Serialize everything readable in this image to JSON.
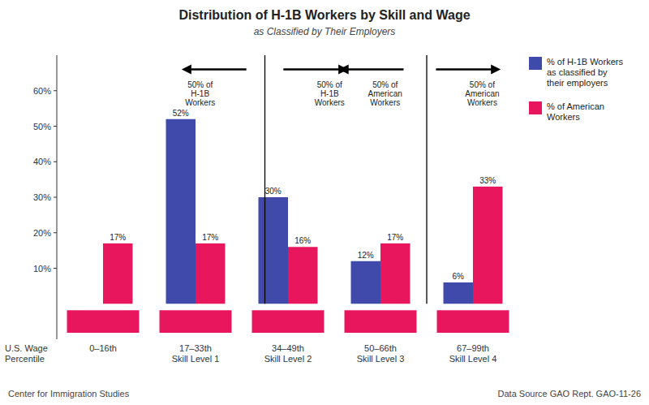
{
  "chart_data": {
    "type": "bar",
    "title": "Distribution of H-1B Workers by Skill and Wage",
    "subtitle": "as Classified by Their Employers",
    "xlabel": "U.S. Wage\nPercentile",
    "categories": [
      "0–16th",
      "17–33th\nSkill Level 1",
      "34–49th\nSkill Level 2",
      "50–66th\nSkill Level 3",
      "67–99th\nSkill Level 4"
    ],
    "series": [
      {
        "name": "% of H-1B Workers\nas classified by\ntheir employers",
        "color": "#3f4aab",
        "values": [
          0,
          52,
          30,
          12,
          6
        ],
        "value_labels": [
          null,
          "52%",
          "30%",
          "12%",
          "6%"
        ]
      },
      {
        "name": "% of American\nWorkers",
        "color": "#e8175d",
        "values": [
          17,
          17,
          16,
          17,
          33
        ],
        "value_labels": [
          "17%",
          "17%",
          "16%",
          "17%",
          "33%"
        ]
      }
    ],
    "ylim": [
      -10,
      70
    ],
    "yticks": [
      {
        "value": 10,
        "label": "10%"
      },
      {
        "value": 20,
        "label": "20%"
      },
      {
        "value": 30,
        "label": "30%"
      },
      {
        "value": 40,
        "label": "40%"
      },
      {
        "value": 50,
        "label": "50%"
      },
      {
        "value": 60,
        "label": "60%"
      }
    ],
    "grid": false,
    "legend": "upper right",
    "data_labels": true,
    "dividers": [
      1.75,
      3.5
    ],
    "arrows": [
      {
        "x": 1.55,
        "x_end": 0.85,
        "y": 66
      },
      {
        "x": 1.95,
        "x_end": 2.65,
        "y": 66
      },
      {
        "x": 3.25,
        "x_end": 2.55,
        "y": 66
      },
      {
        "x": 3.6,
        "x_end": 4.3,
        "y": 66
      }
    ],
    "annotations": [
      {
        "text": "50% of\nH-1B\nWorkers",
        "x": 1.05,
        "y": 63
      },
      {
        "text": "50% of\nH-1B\nWorkers",
        "x": 2.45,
        "y": 63
      },
      {
        "text": "50% of\nAmerican\nWorkers",
        "x": 3.05,
        "y": 63
      },
      {
        "text": "50% of\nAmerican\nWorkers",
        "x": 4.1,
        "y": 63
      }
    ],
    "footer_left": "Center for Immigration Studies",
    "footer_right": "Data Source GAO Rept. GAO-11-26"
  }
}
